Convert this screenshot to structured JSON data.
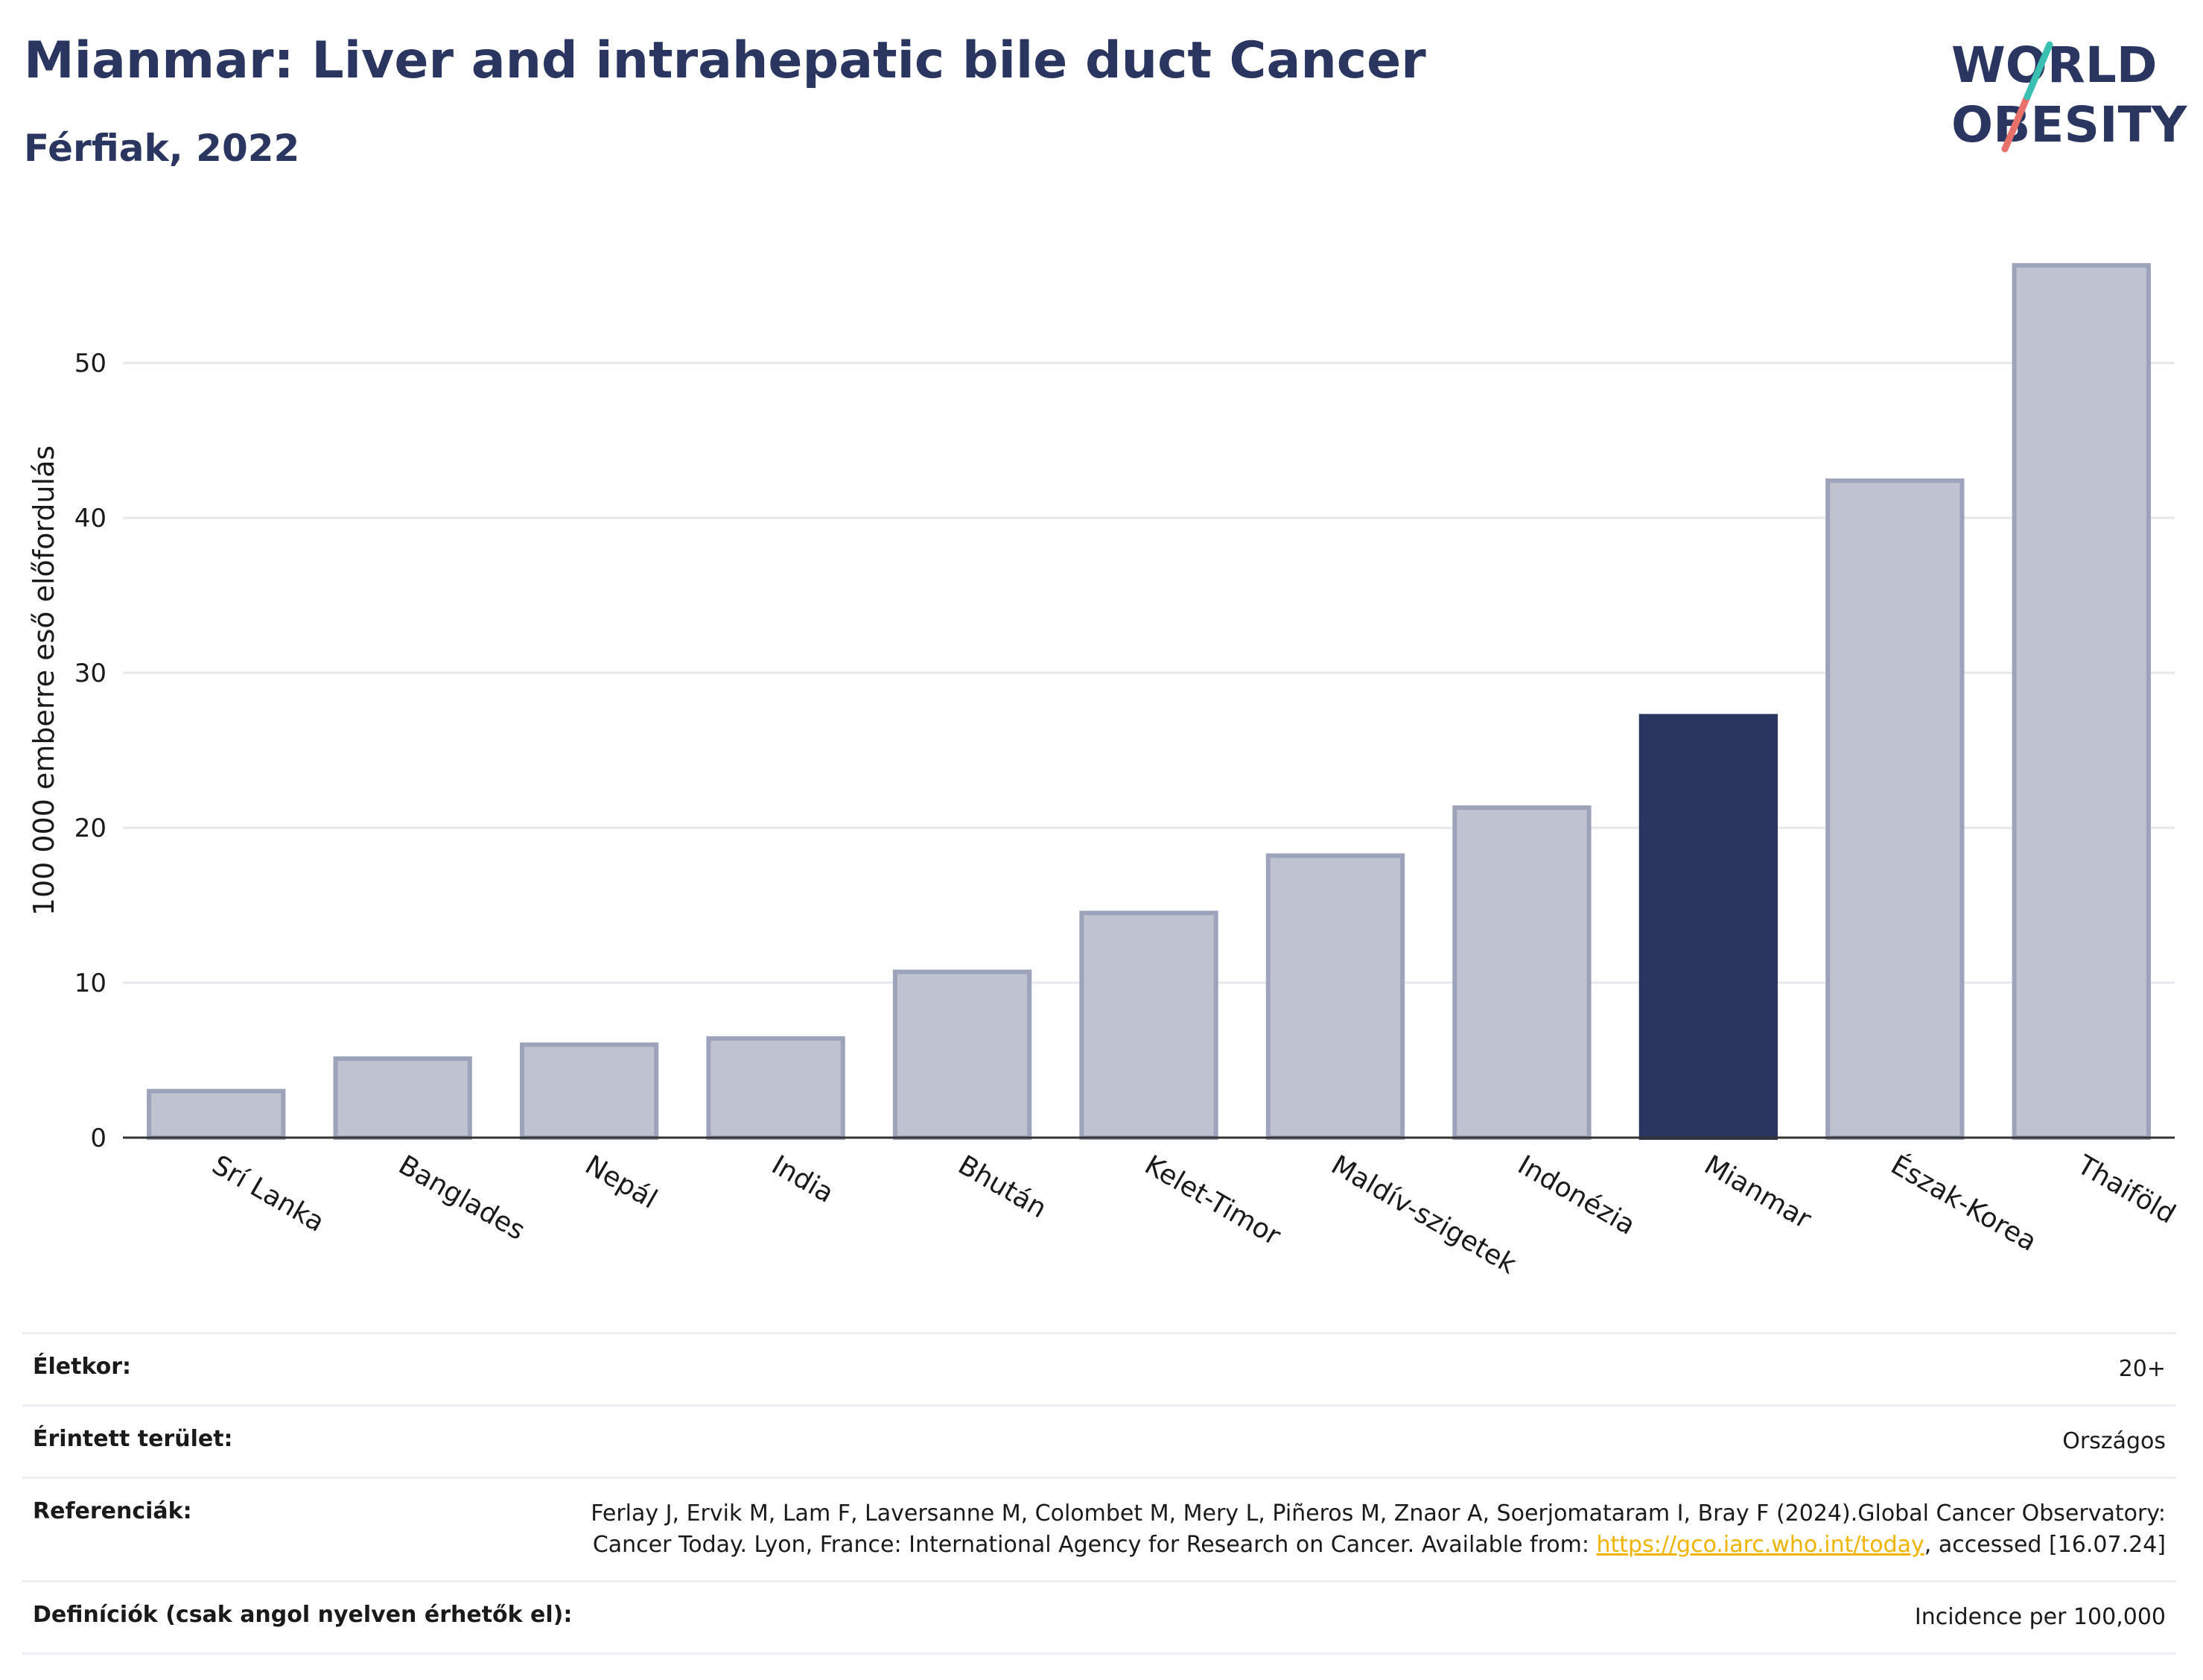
{
  "header": {
    "title": "Mianmar: Liver and intrahepatic bile duct Cancer",
    "subtitle": "Férfiak, 2022"
  },
  "logo": {
    "line1": "WORLD",
    "line2": "OBESITY"
  },
  "colors": {
    "highlight": "#2a3560",
    "default_bar": "#bfc2cf",
    "default_bar_edge": "#9da3ba",
    "title": "#2a3560",
    "link": "#f0b400"
  },
  "chart_data": {
    "type": "bar",
    "title": "Mianmar: Liver and intrahepatic bile duct Cancer",
    "subtitle": "Férfiak, 2022",
    "ylabel": "100 000 emberre eső előfordulás",
    "xlabel": "",
    "ylim": [
      0,
      59
    ],
    "yticks": [
      0,
      10,
      20,
      30,
      40,
      50
    ],
    "grid": true,
    "categories": [
      "Srí Lanka",
      "Banglades",
      "Nepál",
      "India",
      "Bhután",
      "Kelet-Timor",
      "Maldív-szigetek",
      "Indonézia",
      "Mianmar",
      "Észak-Korea",
      "Thaiföld"
    ],
    "values": [
      3.0,
      5.1,
      6.0,
      6.4,
      10.7,
      14.5,
      18.2,
      21.3,
      27.2,
      42.4,
      56.3
    ],
    "highlight": "Mianmar"
  },
  "info": {
    "rows": [
      {
        "key": "Életkor:",
        "value": "20+"
      },
      {
        "key": "Érintett terület:",
        "value": "Országos"
      },
      {
        "key": "Referenciák:",
        "value_pre": "Ferlay J, Ervik M, Lam F, Laversanne M, Colombet M, Mery L, Piñeros M, Znaor A, Soerjomataram I, Bray F (2024).Global Cancer Observatory: Cancer Today. Lyon, France: International Agency for Research on Cancer. Available from: ",
        "link": "https://gco.iarc.who.int/today",
        "value_post": ", accessed [16.07.24]"
      },
      {
        "key": "Definíciók (csak angol nyelven érhetők el):",
        "value": "Incidence per 100,000"
      }
    ]
  }
}
